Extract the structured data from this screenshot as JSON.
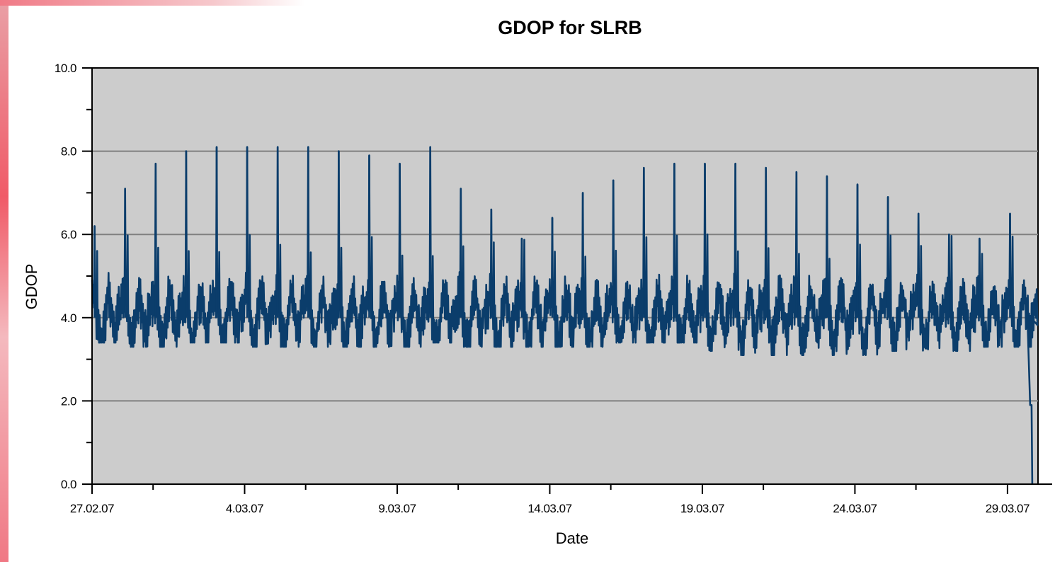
{
  "chart_data": {
    "type": "line",
    "title": "GDOP for SLRB",
    "xlabel": "Date",
    "ylabel": "GDOP",
    "ylim": [
      0,
      10
    ],
    "yticks": [
      "0.0",
      "2.0",
      "4.0",
      "6.0",
      "8.0",
      "10.0"
    ],
    "xlim": [
      "2007-02-27",
      "2007-03-30"
    ],
    "xticks": [
      "27.02.07",
      "4.03.07",
      "9.03.07",
      "14.03.07",
      "19.03.07",
      "24.03.07",
      "29.03.07"
    ],
    "grid": "horizontal",
    "background": "#cccccc",
    "line_color": "#0b3d6b",
    "series": [
      {
        "x": [
          "2007-02-27",
          "2007-02-28",
          "2007-03-01",
          "2007-03-02",
          "2007-03-03",
          "2007-03-04",
          "2007-03-05",
          "2007-03-06",
          "2007-03-07",
          "2007-03-08",
          "2007-03-09",
          "2007-03-10",
          "2007-03-11",
          "2007-03-12",
          "2007-03-13",
          "2007-03-14",
          "2007-03-15",
          "2007-03-16",
          "2007-03-17",
          "2007-03-18",
          "2007-03-19",
          "2007-03-20",
          "2007-03-21",
          "2007-03-22",
          "2007-03-23",
          "2007-03-24",
          "2007-03-25",
          "2007-03-26",
          "2007-03-27",
          "2007-03-28",
          "2007-03-29",
          "2007-03-30"
        ],
        "values": [
          6.2,
          7.1,
          7.7,
          8.0,
          8.1,
          8.1,
          8.1,
          8.1,
          8.0,
          7.9,
          7.7,
          8.1,
          7.1,
          6.6,
          5.9,
          6.4,
          7.0,
          7.3,
          7.6,
          7.7,
          7.7,
          7.7,
          7.6,
          7.5,
          7.4,
          7.2,
          6.9,
          6.5,
          6.0,
          5.9,
          6.5,
          0.0
        ],
        "min": [
          3.4,
          3.3,
          3.3,
          3.4,
          3.4,
          3.3,
          3.3,
          3.3,
          3.3,
          3.3,
          3.3,
          3.4,
          3.3,
          3.3,
          3.3,
          3.3,
          3.3,
          3.4,
          3.4,
          3.4,
          3.2,
          3.1,
          3.1,
          3.1,
          3.1,
          3.1,
          3.2,
          3.2,
          3.2,
          3.3,
          3.3,
          0.0
        ]
      }
    ]
  }
}
